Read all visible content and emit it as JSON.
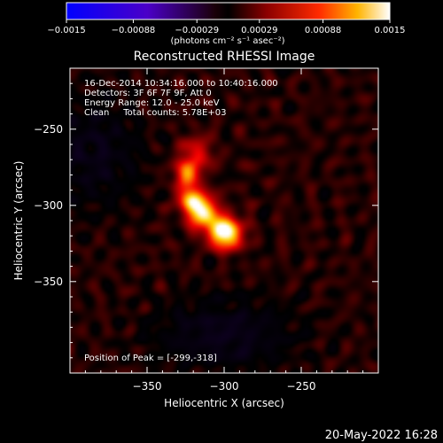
{
  "chart_data": {
    "type": "heatmap",
    "title": "Reconstructed RHESSI Image",
    "xlabel": "Heliocentric X (arcsec)",
    "ylabel": "Heliocentric Y (arcsec)",
    "xlim": [
      -400,
      -200
    ],
    "ylim": [
      -410,
      -210
    ],
    "x_ticks": [
      -350,
      -300,
      -250
    ],
    "y_ticks": [
      -350,
      -300,
      -250
    ],
    "colorbar": {
      "min": -0.0015,
      "max": 0.0015,
      "ticks": [
        "-0.0015",
        "-0.00088",
        "-0.00029",
        "0.00029",
        "0.00088",
        "0.0015"
      ],
      "label": "(photons cm⁻² s⁻¹ asec⁻²)"
    },
    "annotations": [
      "16-Dec-2014 10:34:16.000 to 10:40:16.000",
      "Detectors: 3F 6F 7F 9F, Att 0",
      "Energy Range: 12.0 - 25.0 keV",
      "Clean     Total counts: 5.78E+03"
    ],
    "peak_label": "Position of Peak = [-299,-318]",
    "peak": [
      -299,
      -318
    ],
    "sources": [
      {
        "x": -299,
        "y": -318,
        "intensity": 1.0,
        "sigma": 7
      },
      {
        "x": -313,
        "y": -306,
        "intensity": 0.75,
        "sigma": 7
      },
      {
        "x": -321,
        "y": -296,
        "intensity": 0.7,
        "sigma": 6
      },
      {
        "x": -324,
        "y": -279,
        "intensity": 0.55,
        "sigma": 6
      },
      {
        "x": -318,
        "y": -265,
        "intensity": 0.35,
        "sigma": 7
      }
    ],
    "timestamp": "20-May-2022 16:28"
  }
}
